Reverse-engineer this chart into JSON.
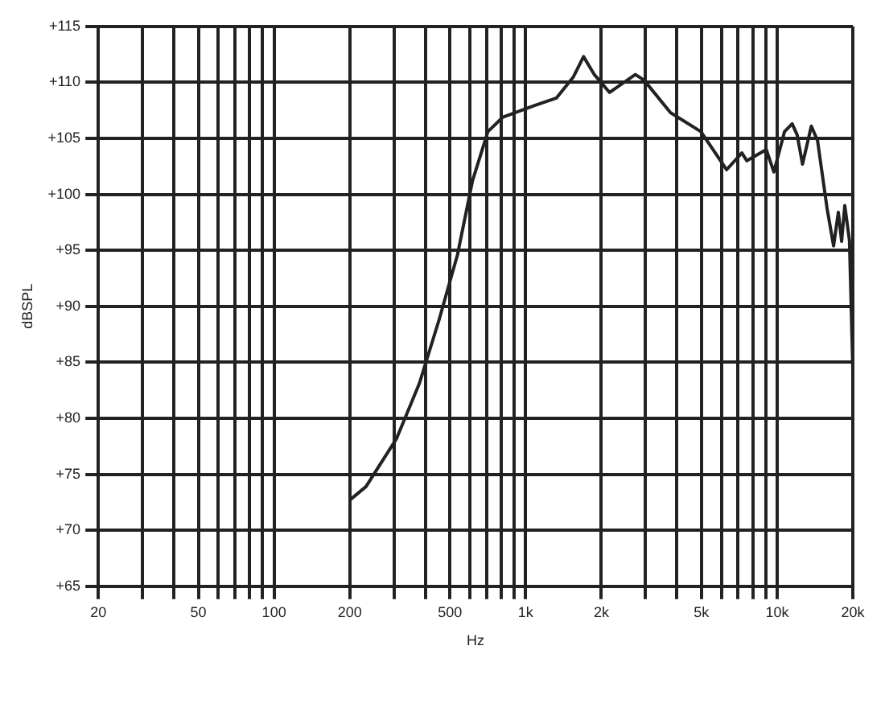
{
  "chart_data": {
    "type": "line",
    "xlabel": "Hz",
    "ylabel": "dBSPL",
    "log": "x",
    "grid": true,
    "legend": false,
    "marker": "none",
    "xlim": [
      20,
      20000
    ],
    "ylim": [
      65,
      115
    ],
    "xticks": [
      20,
      {
        "value": 30,
        "label": null
      },
      {
        "value": 40,
        "label": null
      },
      50,
      {
        "value": 60,
        "label": null
      },
      {
        "value": 70,
        "label": null
      },
      {
        "value": 80,
        "label": null
      },
      {
        "value": 90,
        "label": null
      },
      100,
      200,
      {
        "value": 300,
        "label": null
      },
      {
        "value": 400,
        "label": null
      },
      500,
      {
        "value": 600,
        "label": null
      },
      {
        "value": 700,
        "label": null
      },
      {
        "value": 800,
        "label": null
      },
      {
        "value": 900,
        "label": null
      },
      {
        "value": 1000,
        "label": "1k"
      },
      {
        "value": 2000,
        "label": "2k"
      },
      {
        "value": 3000,
        "label": null
      },
      {
        "value": 4000,
        "label": null
      },
      {
        "value": 5000,
        "label": "5k"
      },
      {
        "value": 6000,
        "label": null
      },
      {
        "value": 7000,
        "label": null
      },
      {
        "value": 8000,
        "label": null
      },
      {
        "value": 9000,
        "label": null
      },
      {
        "value": 10000,
        "label": "10k"
      },
      {
        "value": 20000,
        "label": "20k"
      }
    ],
    "yticks": [
      {
        "value": 65,
        "label": "+65"
      },
      {
        "value": 70,
        "label": "+70"
      },
      {
        "value": 75,
        "label": "+75"
      },
      {
        "value": 80,
        "label": "+80"
      },
      {
        "value": 85,
        "label": "+85"
      },
      {
        "value": 90,
        "label": "+90"
      },
      {
        "value": 95,
        "label": "+95"
      },
      {
        "value": 100,
        "label": "+100"
      },
      {
        "value": 105,
        "label": "+105"
      },
      {
        "value": 110,
        "label": "+110"
      },
      {
        "value": 115,
        "label": "+115"
      }
    ],
    "series": [
      {
        "color": "#222222",
        "x": [
          200,
          232,
          307,
          378,
          453,
          536,
          615,
          708,
          813,
          1075,
          1325,
          1550,
          1700,
          1876,
          2158,
          2731,
          2958,
          3767,
          4977,
          6296,
          7243,
          7580,
          9056,
          9709,
          10700,
          11480,
          12020,
          12620,
          13680,
          14480,
          15810,
          16770,
          17520,
          18050,
          18580,
          19390,
          20000
        ],
        "values": [
          72.7,
          73.9,
          78.2,
          83.1,
          88.8,
          94.6,
          101.2,
          105.6,
          106.9,
          107.9,
          108.6,
          110.5,
          112.3,
          110.7,
          109.1,
          110.7,
          110.2,
          107.3,
          105.6,
          102.2,
          103.7,
          103.0,
          104.0,
          102.0,
          105.6,
          106.3,
          105.3,
          102.7,
          106.1,
          104.8,
          98.7,
          95.4,
          98.4,
          95.8,
          99.0,
          95.9,
          84.4
        ]
      }
    ]
  }
}
